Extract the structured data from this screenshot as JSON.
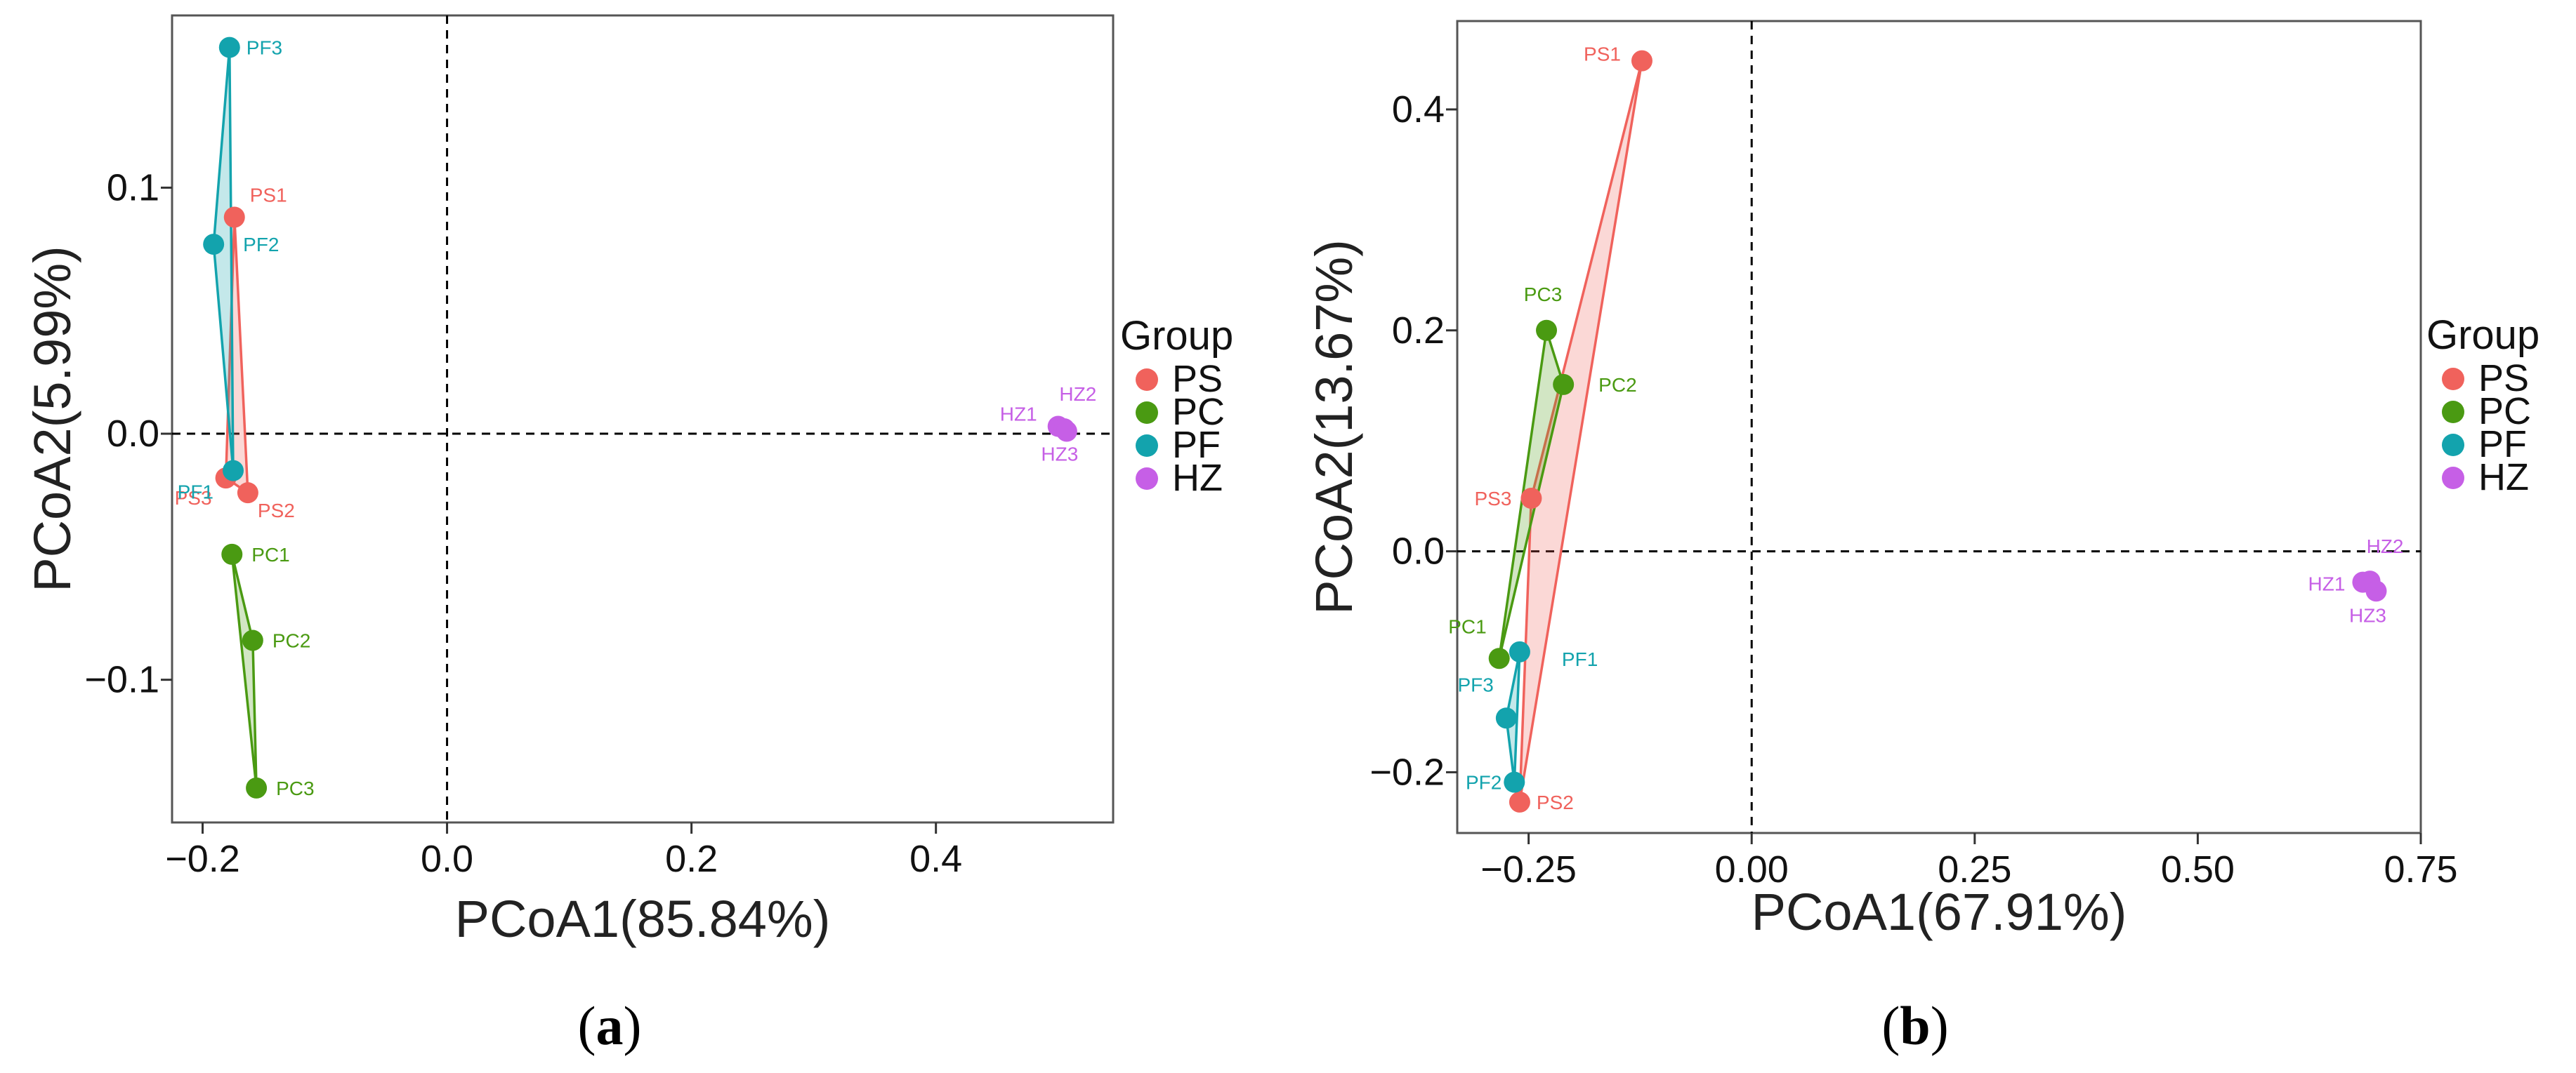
{
  "colors": {
    "PS": "#F0625C",
    "PC": "#4A9A12",
    "PF": "#13A3AD",
    "HZ": "#C65FE6"
  },
  "legend": {
    "title": "Group",
    "items": [
      "PS",
      "PC",
      "PF",
      "HZ"
    ]
  },
  "captions": [
    {
      "open": "(",
      "letter": "a",
      "close": ")"
    },
    {
      "open": "(",
      "letter": "b",
      "close": ")"
    }
  ],
  "chart_data": [
    {
      "type": "scatter",
      "title": "",
      "xlabel": "PCoA1(85.84%)",
      "ylabel": "PCoA2(5.99%)",
      "xlim": [
        -0.225,
        0.545
      ],
      "ylim": [
        -0.158,
        0.17
      ],
      "xticks": [
        -0.2,
        0.0,
        0.2,
        0.4
      ],
      "xtick_labels": [
        "−0.2",
        "0.0",
        "0.2",
        "0.4"
      ],
      "yticks": [
        -0.1,
        0.0,
        0.1
      ],
      "ytick_labels": [
        "−0.1",
        "0.0",
        "0.1"
      ],
      "reference_lines": {
        "x": 0,
        "y": 0
      },
      "series": [
        {
          "name": "PS",
          "points": [
            {
              "label": "PS1",
              "x": -0.174,
              "y": 0.088
            },
            {
              "label": "PS2",
              "x": -0.163,
              "y": -0.024
            },
            {
              "label": "PS3",
              "x": -0.181,
              "y": -0.018
            }
          ]
        },
        {
          "name": "PC",
          "points": [
            {
              "label": "PC1",
              "x": -0.176,
              "y": -0.049
            },
            {
              "label": "PC2",
              "x": -0.159,
              "y": -0.084
            },
            {
              "label": "PC3",
              "x": -0.156,
              "y": -0.144
            }
          ]
        },
        {
          "name": "PF",
          "points": [
            {
              "label": "PF1",
              "x": -0.175,
              "y": -0.015
            },
            {
              "label": "PF2",
              "x": -0.191,
              "y": 0.077
            },
            {
              "label": "PF3",
              "x": -0.178,
              "y": 0.157
            }
          ]
        },
        {
          "name": "HZ",
          "points": [
            {
              "label": "HZ1",
              "x": 0.5,
              "y": 0.003
            },
            {
              "label": "HZ2",
              "x": 0.505,
              "y": 0.002
            },
            {
              "label": "HZ3",
              "x": 0.507,
              "y": 0.001
            }
          ]
        }
      ]
    },
    {
      "type": "scatter",
      "title": "",
      "xlabel": "PCoA1(67.91%)",
      "ylabel": "PCoA2(13.67%)",
      "xlim": [
        -0.33,
        0.75
      ],
      "ylim": [
        -0.255,
        0.48
      ],
      "xticks": [
        -0.25,
        0.0,
        0.25,
        0.5,
        0.75
      ],
      "xtick_labels": [
        "−0.25",
        "0.00",
        "0.25",
        "0.50",
        "0.75"
      ],
      "yticks": [
        -0.2,
        0.0,
        0.2,
        0.4
      ],
      "ytick_labels": [
        "−0.2",
        "0.0",
        "0.2",
        "0.4"
      ],
      "reference_lines": {
        "x": 0,
        "y": 0
      },
      "series": [
        {
          "name": "PS",
          "points": [
            {
              "label": "PS1",
              "x": -0.123,
              "y": 0.444
            },
            {
              "label": "PS2",
              "x": -0.26,
              "y": -0.227
            },
            {
              "label": "PS3",
              "x": -0.247,
              "y": 0.048
            }
          ]
        },
        {
          "name": "PC",
          "points": [
            {
              "label": "PC1",
              "x": -0.283,
              "y": -0.097
            },
            {
              "label": "PC2",
              "x": -0.211,
              "y": 0.151
            },
            {
              "label": "PC3",
              "x": -0.23,
              "y": 0.2
            }
          ]
        },
        {
          "name": "PF",
          "points": [
            {
              "label": "PF1",
              "x": -0.26,
              "y": -0.091
            },
            {
              "label": "PF2",
              "x": -0.266,
              "y": -0.209
            },
            {
              "label": "PF3",
              "x": -0.275,
              "y": -0.151
            }
          ]
        },
        {
          "name": "HZ",
          "points": [
            {
              "label": "HZ1",
              "x": 0.685,
              "y": -0.028
            },
            {
              "label": "HZ2",
              "x": 0.693,
              "y": -0.027
            },
            {
              "label": "HZ3",
              "x": 0.7,
              "y": -0.036
            }
          ]
        }
      ]
    }
  ]
}
